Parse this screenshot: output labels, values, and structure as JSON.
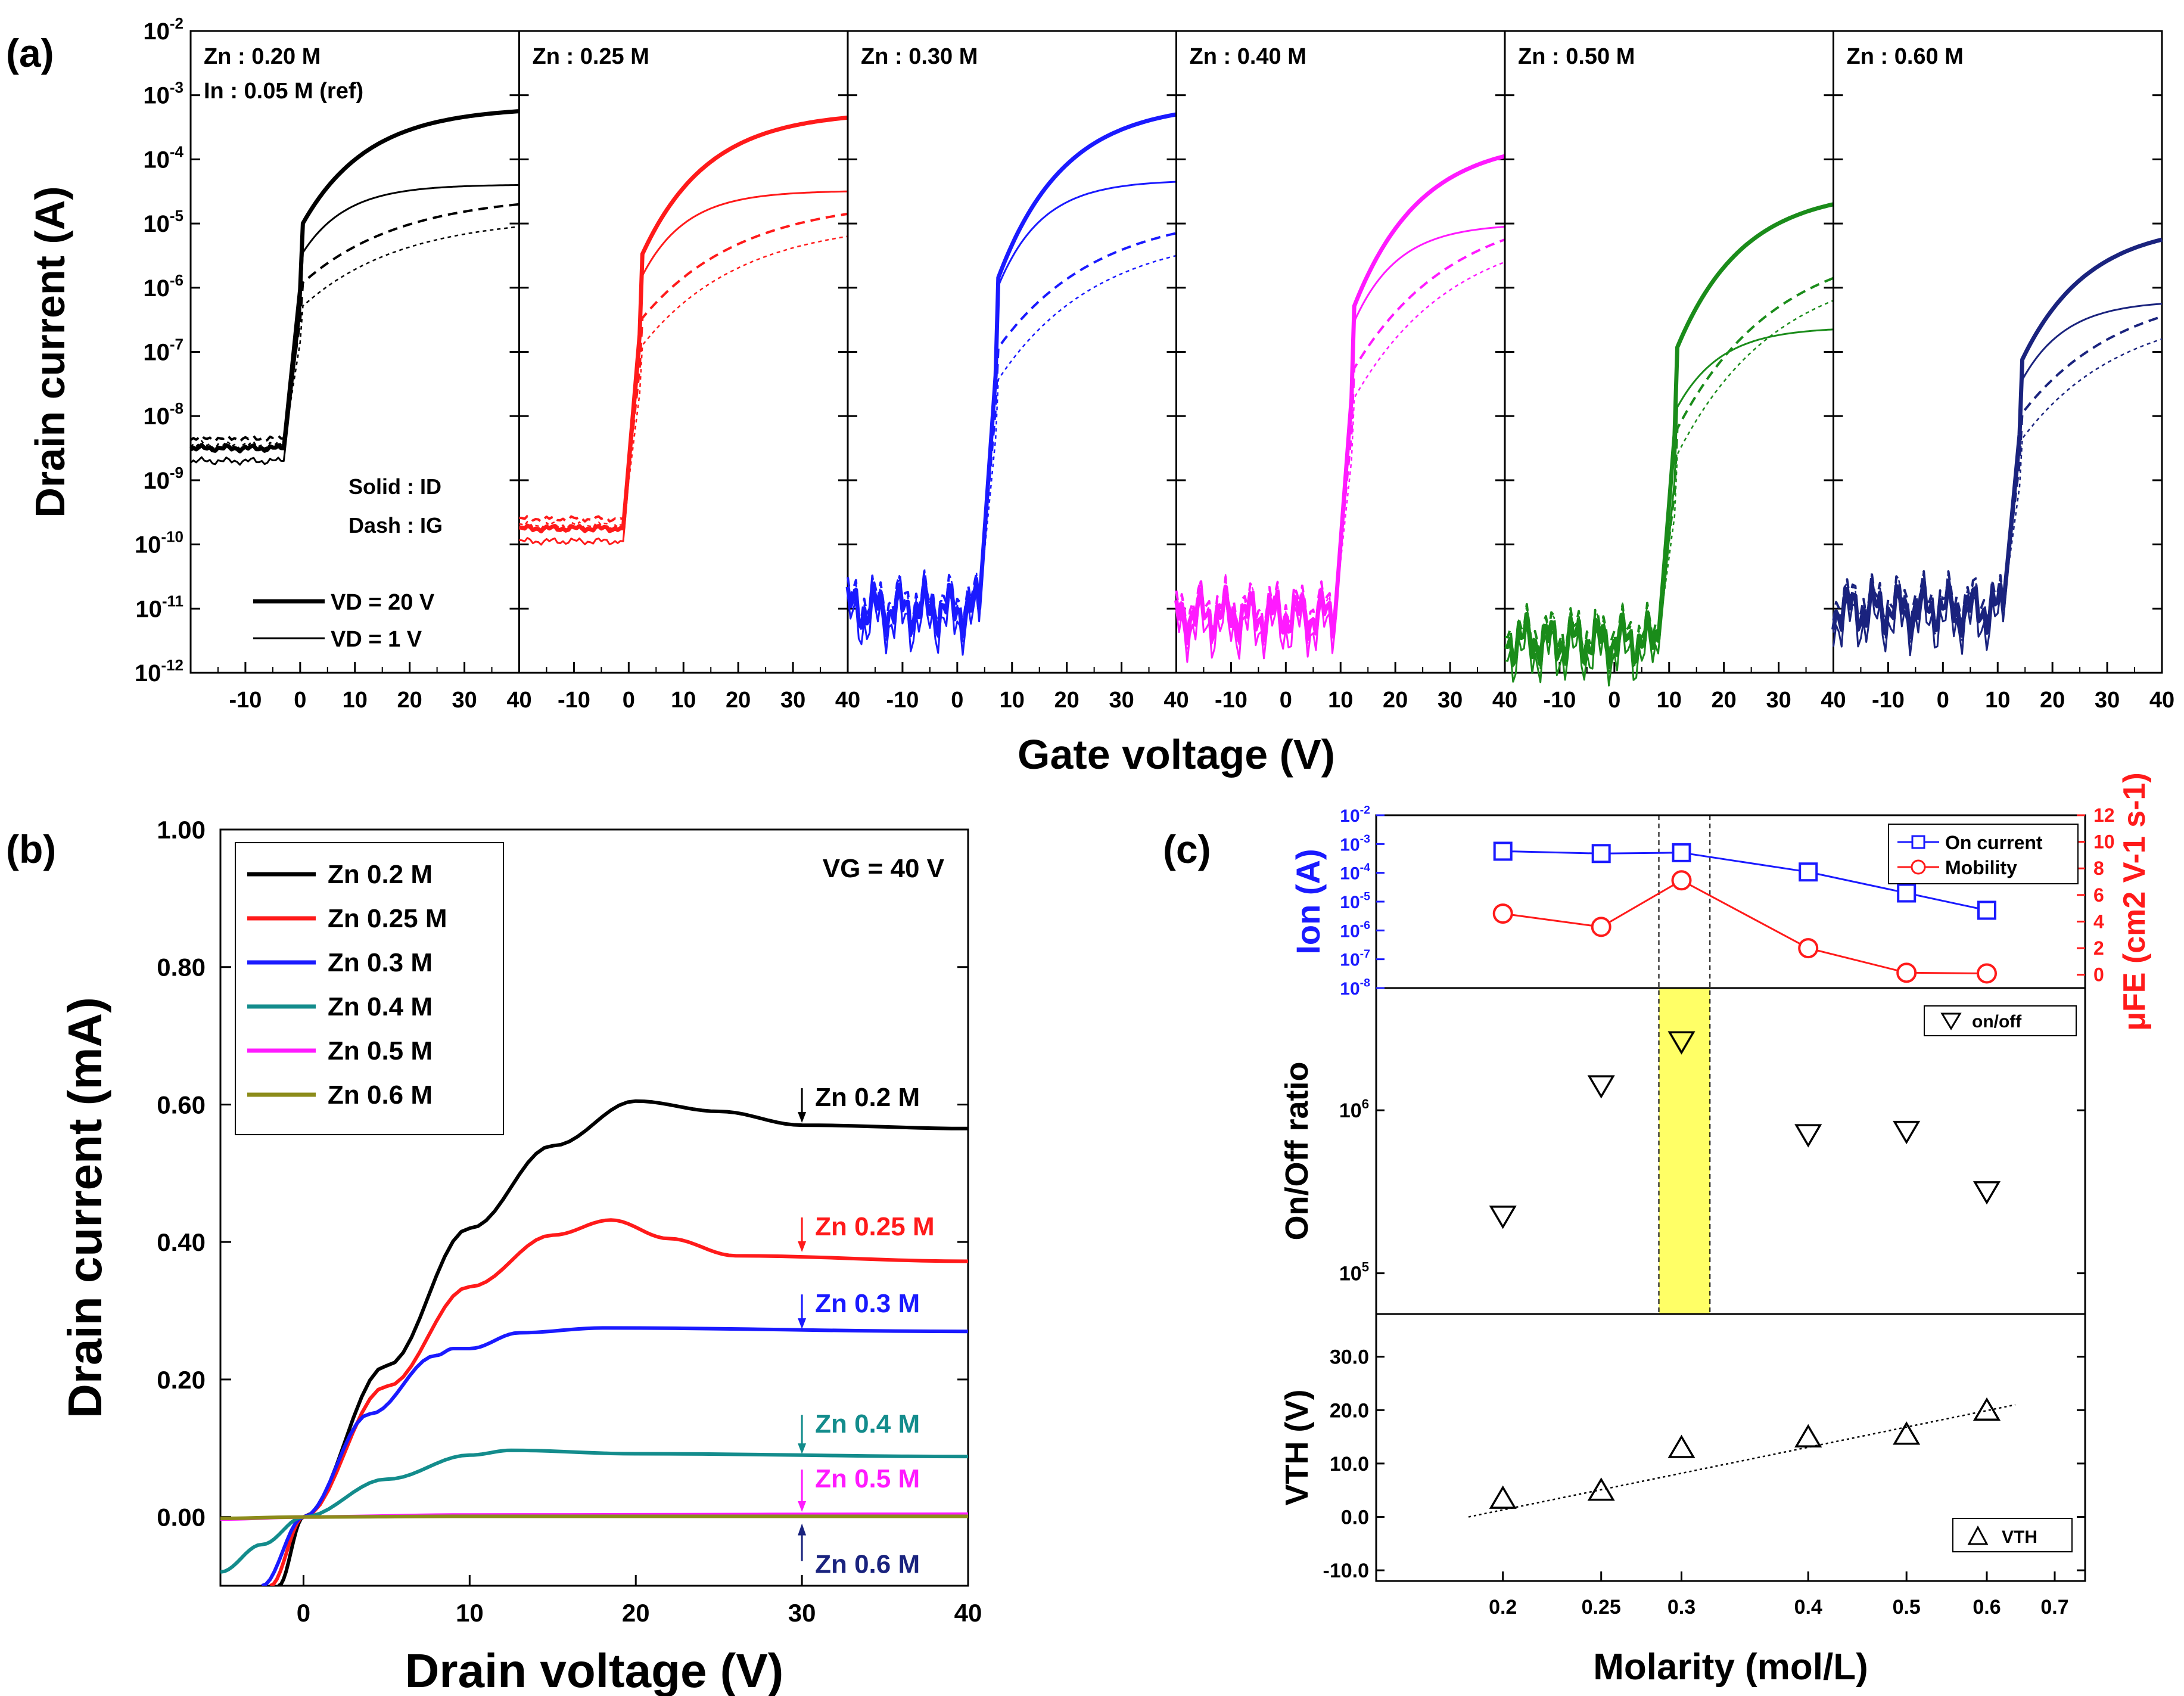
{
  "figure": {
    "panel_a_label": "(a)",
    "panel_b_label": "(b)",
    "panel_c_label": "(c)"
  },
  "colors": {
    "zn020": "#000000",
    "zn025": "#ff1a1a",
    "zn030": "#1a1aff",
    "zn040": "#ff1aff",
    "zn050": "#1a8c1a",
    "zn060": "#1a237e",
    "b_zn04": "#138c8c",
    "b_zn06": "#8c8c1a",
    "vth_highlight": "#ffff66"
  },
  "chart_data": [
    {
      "id": "a",
      "type": "line",
      "title": "",
      "xlabel": "Gate voltage (V)",
      "ylabel": "Drain current (A)",
      "yscale": "log",
      "xlim": [
        -20,
        40
      ],
      "ylim": [
        1e-12,
        0.01
      ],
      "xticks": [
        "-10",
        "0",
        "10",
        "20",
        "30",
        "40"
      ],
      "yticks": [
        "10-12",
        "10-11",
        "10-10",
        "10-9",
        "10-8",
        "10-7",
        "10-6",
        "10-5",
        "10-4",
        "10-3",
        "10-2"
      ],
      "legend": {
        "vd20": "VD = 20 V",
        "vd1": "VD =   1 V",
        "solid": "Solid : ID",
        "dash": "Dash : IG"
      },
      "panels": [
        {
          "label": "Zn : 0.20 M",
          "label2": "In : 0.05 M (ref)",
          "color": "#000000",
          "turn_on_V": -3,
          "off_log": -8.5,
          "on_log_20V": -3.25,
          "on_log_1V": -4.4,
          "ig_log": -4.7
        },
        {
          "label": "Zn : 0.25 M",
          "color": "#ff1a1a",
          "turn_on_V": -1,
          "off_log": -9.75,
          "on_log_20V": -3.35,
          "on_log_1V": -4.5,
          "ig_log": -4.85
        },
        {
          "label": "Zn : 0.30 M",
          "color": "#1a1aff",
          "turn_on_V": 4,
          "off_log": -11,
          "on_log_20V": -3.3,
          "on_log_1V": -4.35,
          "ig_log": -5.15
        },
        {
          "label": "Zn : 0.40 M",
          "color": "#ff1aff",
          "turn_on_V": 9,
          "off_log": -11.1,
          "on_log_20V": -3.95,
          "on_log_1V": -5.05,
          "ig_log": -5.25
        },
        {
          "label": "Zn : 0.50 M",
          "color": "#1a8c1a",
          "turn_on_V": 8,
          "off_log": -11.5,
          "on_log_20V": -4.7,
          "on_log_1V": -6.65,
          "ig_log": -5.85
        },
        {
          "label": "Zn : 0.60 M",
          "color": "#1a237e",
          "turn_on_V": 11,
          "off_log": -11,
          "on_log_20V": -5.25,
          "on_log_1V": -6.25,
          "ig_log": -6.45
        }
      ]
    },
    {
      "id": "b",
      "type": "line",
      "title": "",
      "xlabel": "Drain voltage (V)",
      "ylabel": "Drain current (mA)",
      "xlim": [
        -5,
        40
      ],
      "ylim": [
        -0.1,
        1.0
      ],
      "xticks": [
        "0",
        "10",
        "20",
        "30",
        "40"
      ],
      "yticks": [
        "0.00",
        "0.20",
        "0.40",
        "0.60",
        "0.80",
        "1.00"
      ],
      "annotation": "VG = 40 V",
      "series": [
        {
          "name": "Zn   0.2 M",
          "color": "#000000",
          "points": [
            [
              -1.5,
              -0.1
            ],
            [
              0,
              0
            ],
            [
              5,
              0.22
            ],
            [
              10,
              0.42
            ],
            [
              15,
              0.54
            ],
            [
              20,
              0.605
            ],
            [
              25,
              0.59
            ],
            [
              30,
              0.57
            ],
            [
              40,
              0.565
            ]
          ]
        },
        {
          "name": "Zn 0.25 M",
          "color": "#ff1a1a",
          "points": [
            [
              -2,
              -0.1
            ],
            [
              0,
              0
            ],
            [
              5,
              0.19
            ],
            [
              10,
              0.335
            ],
            [
              15,
              0.41
            ],
            [
              18.5,
              0.432
            ],
            [
              22,
              0.405
            ],
            [
              26,
              0.38
            ],
            [
              40,
              0.372
            ]
          ]
        },
        {
          "name": "Zn   0.3 M",
          "color": "#1a1aff",
          "points": [
            [
              -2.5,
              -0.1
            ],
            [
              0,
              0
            ],
            [
              4,
              0.15
            ],
            [
              8,
              0.235
            ],
            [
              9,
              0.245
            ],
            [
              10,
              0.245
            ],
            [
              13,
              0.268
            ],
            [
              18,
              0.275
            ],
            [
              40,
              0.27
            ]
          ]
        },
        {
          "name": "Zn   0.4 M",
          "color": "#138c8c",
          "points": [
            [
              -5,
              -0.08
            ],
            [
              -2.5,
              -0.04
            ],
            [
              0,
              0
            ],
            [
              5,
              0.055
            ],
            [
              10,
              0.09
            ],
            [
              12.5,
              0.097
            ],
            [
              20,
              0.092
            ],
            [
              40,
              0.088
            ]
          ]
        },
        {
          "name": "Zn   0.5 M",
          "color": "#ff1aff",
          "points": [
            [
              -5,
              -0.003
            ],
            [
              0,
              0
            ],
            [
              10,
              0.003
            ],
            [
              40,
              0.004
            ]
          ]
        },
        {
          "name": "Zn   0.6 M",
          "color": "#8c8c1a",
          "points": [
            [
              -5,
              -0.002
            ],
            [
              0,
              0
            ],
            [
              10,
              0.001
            ],
            [
              40,
              0.001
            ]
          ]
        }
      ],
      "labels": [
        {
          "text": "Zn 0.2 M",
          "color": "#000000",
          "y": 0.57
        },
        {
          "text": "Zn 0.25 M",
          "color": "#ff1a1a",
          "y": 0.382
        },
        {
          "text": "Zn 0.3 M",
          "color": "#1a1aff",
          "y": 0.27
        },
        {
          "text": "Zn 0.4 M",
          "color": "#138c8c",
          "y": 0.088
        },
        {
          "text": "Zn 0.5 M",
          "color": "#ff1aff",
          "y": 0.004
        },
        {
          "text": "Zn 0.6 M",
          "color": "#1a237e",
          "y": 0.001
        }
      ]
    },
    {
      "id": "c",
      "type": "scatter",
      "title": "",
      "xlabel": "Molarity (mol/L)",
      "xscale": "log",
      "xlim": [
        0.15,
        0.75
      ],
      "xticks": [
        "0.2",
        "0.25",
        "0.3",
        "0.4",
        "0.5",
        "0.6",
        "0.7"
      ],
      "highlight_x": [
        0.285,
        0.32
      ],
      "top": {
        "ylabel_left": "Ion (A)",
        "ylabel_right": "μFE (cm2 V-1 s-1)",
        "left_yticks": [
          "10-8",
          "10-7",
          "10-6",
          "10-5",
          "10-4",
          "10-3",
          "10-2"
        ],
        "right_yticks": [
          "0",
          "2",
          "4",
          "6",
          "8",
          "10",
          "12"
        ],
        "left_ylim_log": [
          -8,
          -2
        ],
        "right_ylim": [
          -1,
          12
        ],
        "series": [
          {
            "name": "On current",
            "color": "#1a1aff",
            "x": [
              0.2,
              0.25,
              0.3,
              0.4,
              0.5,
              0.6
            ],
            "log_y": [
              -3.25,
              -3.33,
              -3.3,
              -3.97,
              -4.7,
              -5.3
            ]
          },
          {
            "name": "Mobility",
            "color": "#ff1a1a",
            "x": [
              0.2,
              0.25,
              0.3,
              0.4,
              0.5,
              0.6
            ],
            "y": [
              4.6,
              3.6,
              7.1,
              2.0,
              0.15,
              0.1
            ]
          }
        ]
      },
      "middle": {
        "ylabel": "On/Off ratio",
        "yticks": [
          "10^5",
          "10^6"
        ],
        "ylim_log": [
          4.75,
          6.75
        ],
        "series": [
          {
            "name": "on/off",
            "x": [
              0.2,
              0.25,
              0.3,
              0.4,
              0.5,
              0.6
            ],
            "log_y": [
              5.35,
              6.15,
              6.42,
              5.85,
              5.87,
              5.5
            ]
          }
        ]
      },
      "bottom": {
        "ylabel": "VTH (V)",
        "yticks": [
          "-10.0",
          "0.0",
          "10.0",
          "20.0",
          "30.0"
        ],
        "ylim": [
          -12,
          38
        ],
        "series": [
          {
            "name": "VTH",
            "x": [
              0.2,
              0.25,
              0.3,
              0.4,
              0.5,
              0.6
            ],
            "y": [
              3.5,
              5.0,
              13.0,
              15.0,
              15.5,
              20.0
            ]
          }
        ],
        "fit": {
          "x": [
            0.185,
            0.64
          ],
          "y": [
            0.0,
            21.0
          ]
        }
      }
    }
  ]
}
